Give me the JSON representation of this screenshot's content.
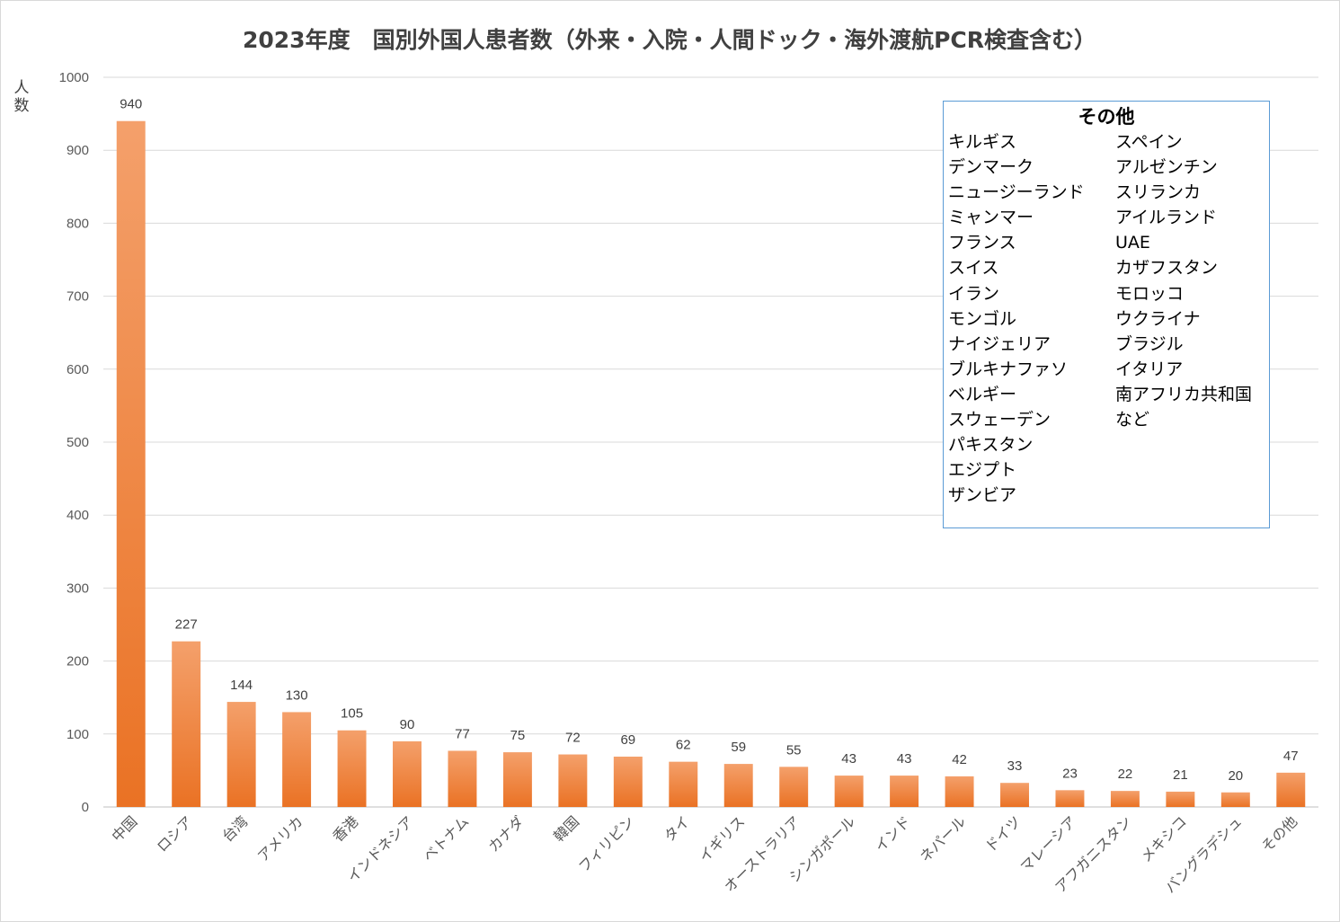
{
  "chart_data": {
    "type": "bar",
    "title": "2023年度　国別外国人患者数（外来・入院・人間ドック・海外渡航PCR検査含む）",
    "ylabel": "人数",
    "xlabel": "",
    "ylim": [
      0,
      1000
    ],
    "yticks": [
      0,
      100,
      200,
      300,
      400,
      500,
      600,
      700,
      800,
      900,
      1000
    ],
    "grid": true,
    "bar_color": "#ed7d31",
    "categories": [
      "中国",
      "ロシア",
      "台湾",
      "アメリカ",
      "香港",
      "インドネシア",
      "ベトナム",
      "カナダ",
      "韓国",
      "フィリピン",
      "タイ",
      "イギリス",
      "オーストラリア",
      "シンガポール",
      "インド",
      "ネパール",
      "ドイツ",
      "マレーシア",
      "アフガニスタン",
      "メキシコ",
      "バングラデシュ",
      "その他"
    ],
    "values": [
      940,
      227,
      144,
      130,
      105,
      90,
      77,
      75,
      72,
      69,
      62,
      59,
      55,
      43,
      43,
      42,
      33,
      23,
      22,
      21,
      20,
      47
    ],
    "annotation": {
      "title": "その他",
      "left_column": [
        "キルギス",
        "デンマーク",
        "ニュージーランド",
        "ミャンマー",
        "フランス",
        "スイス",
        "イラン",
        "モンゴル",
        "ナイジェリア",
        "ブルキナファソ",
        "ベルギー",
        "スウェーデン",
        "パキスタン",
        "エジプト",
        "ザンビア"
      ],
      "right_column": [
        "スペイン",
        "アルゼンチン",
        "スリランカ",
        "アイルランド",
        "UAE",
        "カザフスタン",
        "モロッコ",
        "ウクライナ",
        "ブラジル",
        "イタリア",
        "南アフリカ共和国",
        "など"
      ]
    }
  }
}
